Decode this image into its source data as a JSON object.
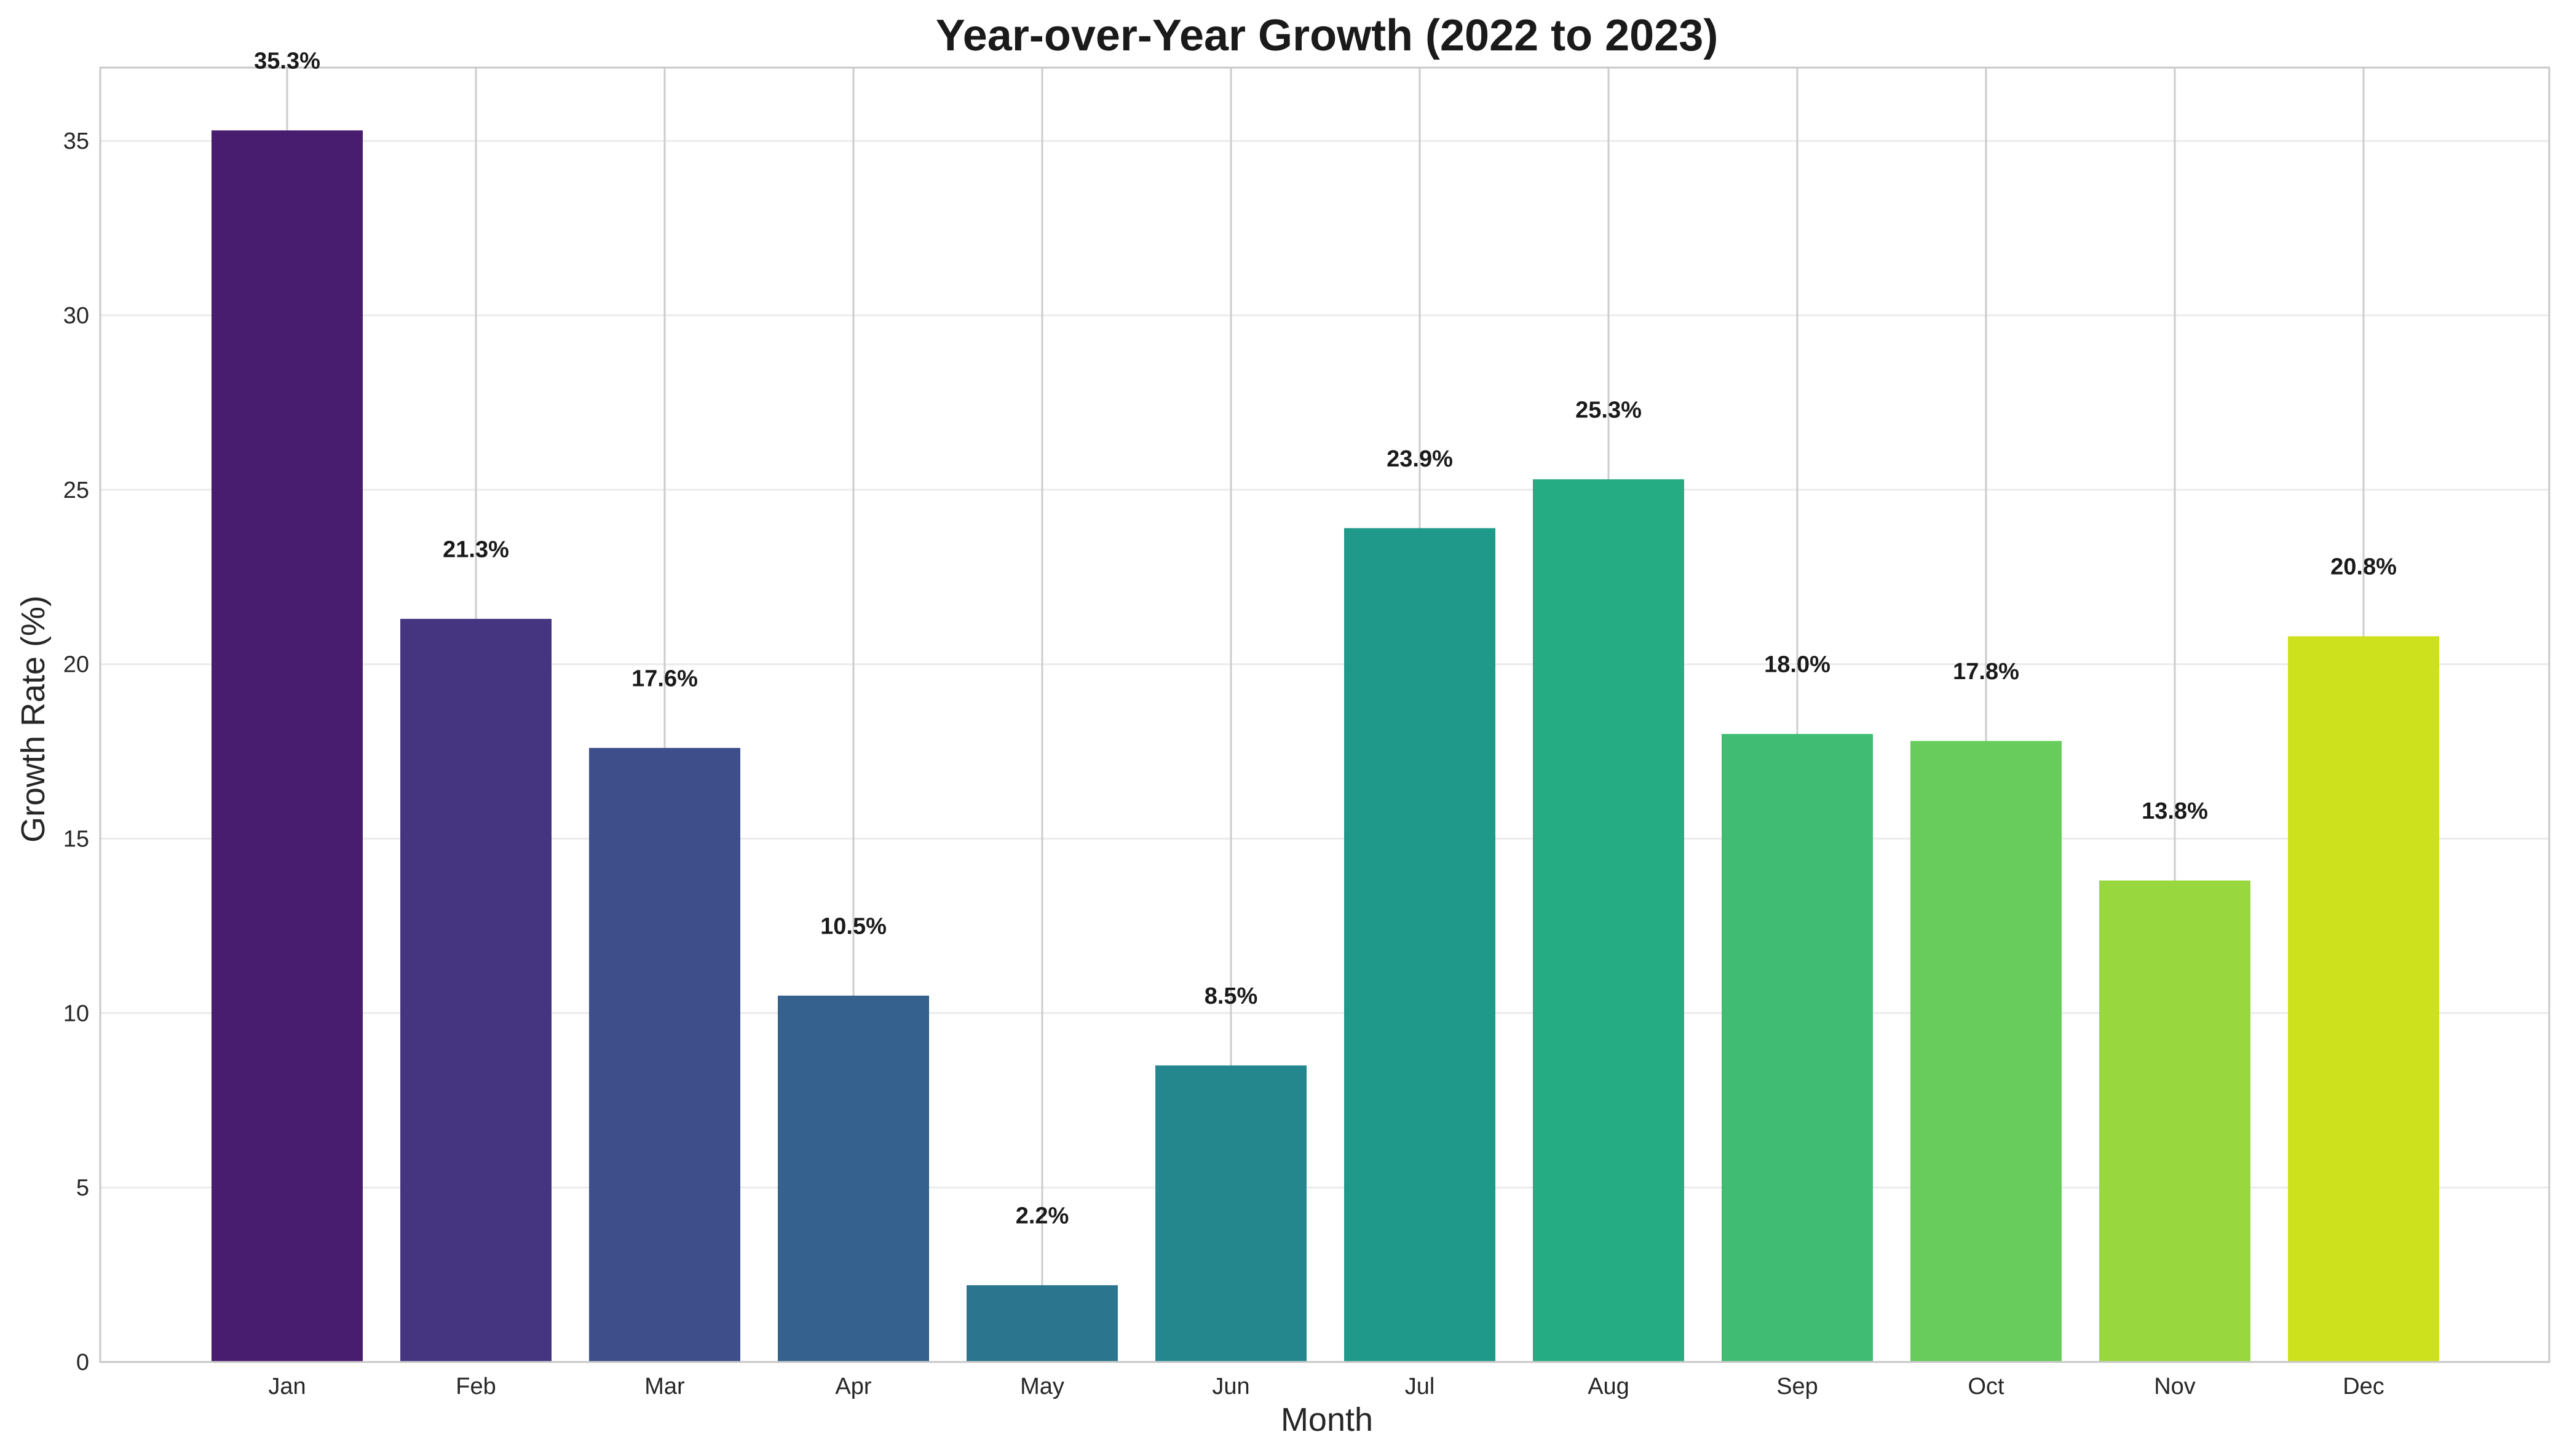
{
  "chart_data": {
    "type": "bar",
    "title": "Year-over-Year Growth (2022 to 2023)",
    "xlabel": "Month",
    "ylabel": "Growth Rate (%)",
    "categories": [
      "Jan",
      "Feb",
      "Mar",
      "Apr",
      "May",
      "Jun",
      "Jul",
      "Aug",
      "Sep",
      "Oct",
      "Nov",
      "Dec"
    ],
    "values": [
      35.3,
      21.3,
      17.6,
      10.5,
      2.2,
      8.5,
      23.9,
      25.3,
      18.0,
      17.8,
      13.8,
      20.8
    ],
    "value_labels": [
      "35.3%",
      "21.3%",
      "17.6%",
      "10.5%",
      "2.2%",
      "8.5%",
      "23.9%",
      "25.3%",
      "18.0%",
      "17.8%",
      "13.8%",
      "20.8%"
    ],
    "colors": [
      "#481c6e",
      "#453581",
      "#3d4e8a",
      "#34618d",
      "#2b758e",
      "#24878e",
      "#1f998a",
      "#25ac82",
      "#40bd72",
      "#67cc5c",
      "#98d83e",
      "#cde11d"
    ],
    "ylim": [
      0,
      37.1
    ],
    "yticks": [
      0,
      5,
      10,
      15,
      20,
      25,
      30,
      35
    ],
    "ytick_labels": [
      "0",
      "5",
      "10",
      "15",
      "20",
      "25",
      "30",
      "35"
    ],
    "grid": true,
    "legend": "none"
  }
}
